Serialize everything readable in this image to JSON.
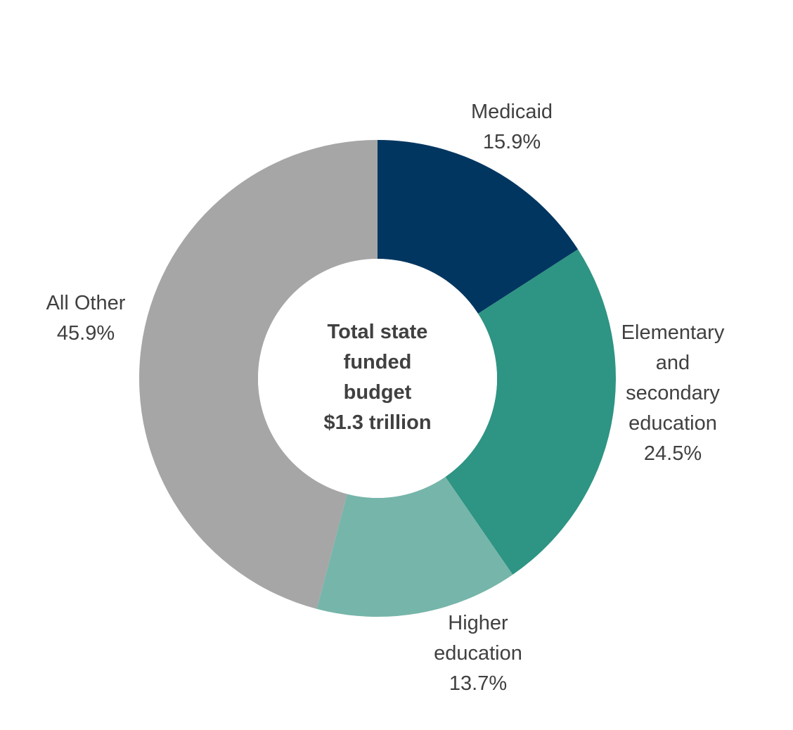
{
  "chart_data": {
    "type": "pie",
    "variant": "donut",
    "center_label": [
      "Total state",
      "funded",
      "budget",
      "$1.3 trillion"
    ],
    "slices": [
      {
        "label_lines": [
          "Medicaid"
        ],
        "value_text": "15.9%",
        "value": 15.9,
        "color": "#003660"
      },
      {
        "label_lines": [
          "Elementary",
          "and",
          "secondary",
          "education"
        ],
        "value_text": "24.5%",
        "value": 24.5,
        "color": "#2e9483"
      },
      {
        "label_lines": [
          "Higher",
          "education"
        ],
        "value_text": "13.7%",
        "value": 13.7,
        "color": "#76b5aa"
      },
      {
        "label_lines": [
          "All Other"
        ],
        "value_text": "45.9%",
        "value": 45.9,
        "color": "#a6a6a6"
      }
    ],
    "legend": "none"
  }
}
